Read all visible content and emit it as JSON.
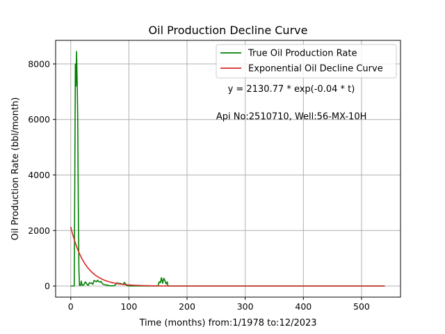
{
  "chart_data": {
    "type": "line",
    "title": "Oil Production Decline Curve",
    "xlabel": "Time (months) from:1/1978 to:12/2023",
    "ylabel": "Oil Production Rate (bbl/month)",
    "xlim": [
      -26,
      567
    ],
    "ylim": [
      -400,
      8850
    ],
    "xticks": [
      0,
      100,
      200,
      300,
      400,
      500
    ],
    "yticks": [
      0,
      2000,
      4000,
      6000,
      8000
    ],
    "grid": true,
    "legend_position": "top-right",
    "annotations": [
      {
        "text": "y = 2130.77 * exp(-0.04 * t)",
        "x": 270,
        "y": 7000
      },
      {
        "text": "Api No:2510710, Well:56-MX-10H",
        "x": 250,
        "y": 6000
      }
    ],
    "series": [
      {
        "name": "True Oil Production Rate",
        "color": "#008000",
        "x": [
          0,
          6,
          8,
          9,
          10,
          11,
          12,
          13,
          14,
          15,
          16,
          17,
          18,
          19,
          20,
          22,
          25,
          28,
          30,
          32,
          34,
          36,
          38,
          40,
          42,
          44,
          46,
          48,
          50,
          52,
          54,
          56,
          58,
          60,
          62,
          64,
          66,
          70,
          75,
          80,
          82,
          84,
          86,
          88,
          90,
          92,
          94,
          96,
          100,
          120,
          140,
          150,
          152,
          154,
          156,
          158,
          160,
          162,
          164,
          166,
          167,
          170,
          200,
          300,
          400,
          540
        ],
        "y": [
          0,
          0,
          8000,
          7200,
          8450,
          7500,
          6000,
          3000,
          600,
          20,
          10,
          30,
          180,
          80,
          20,
          30,
          150,
          60,
          20,
          120,
          100,
          110,
          60,
          200,
          180,
          150,
          210,
          160,
          140,
          170,
          100,
          60,
          50,
          40,
          20,
          30,
          10,
          5,
          10,
          120,
          80,
          100,
          90,
          70,
          60,
          130,
          90,
          20,
          0,
          0,
          0,
          0,
          150,
          120,
          300,
          100,
          280,
          200,
          80,
          150,
          0,
          0,
          0,
          0,
          0,
          0
        ]
      },
      {
        "name": "Exponential Oil Decline Curve",
        "color": "#d62728",
        "model": {
          "a": 2130.77,
          "b": 0.04,
          "x_start": 0,
          "x_end": 540
        }
      }
    ]
  }
}
